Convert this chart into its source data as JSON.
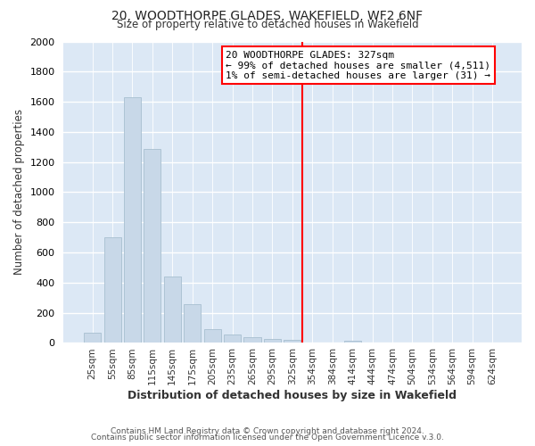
{
  "title": "20, WOODTHORPE GLADES, WAKEFIELD, WF2 6NF",
  "subtitle": "Size of property relative to detached houses in Wakefield",
  "xlabel": "Distribution of detached houses by size in Wakefield",
  "ylabel": "Number of detached properties",
  "bar_labels": [
    "25sqm",
    "55sqm",
    "85sqm",
    "115sqm",
    "145sqm",
    "175sqm",
    "205sqm",
    "235sqm",
    "265sqm",
    "295sqm",
    "325sqm",
    "354sqm",
    "384sqm",
    "414sqm",
    "444sqm",
    "474sqm",
    "504sqm",
    "534sqm",
    "564sqm",
    "594sqm",
    "624sqm"
  ],
  "bar_values": [
    65,
    700,
    1630,
    1285,
    440,
    255,
    90,
    55,
    40,
    28,
    20,
    0,
    0,
    15,
    0,
    0,
    0,
    0,
    0,
    0,
    0
  ],
  "bar_color": "#c8d8e8",
  "bar_edgecolor": "#a8bfd0",
  "vline_color": "red",
  "annotation_title": "20 WOODTHORPE GLADES: 327sqm",
  "annotation_line1": "← 99% of detached houses are smaller (4,511)",
  "annotation_line2": "1% of semi-detached houses are larger (31) →",
  "ylim": [
    0,
    2000
  ],
  "yticks": [
    0,
    200,
    400,
    600,
    800,
    1000,
    1200,
    1400,
    1600,
    1800,
    2000
  ],
  "footer1": "Contains HM Land Registry data © Crown copyright and database right 2024.",
  "footer2": "Contains public sector information licensed under the Open Government Licence v.3.0.",
  "bg_color": "#ffffff",
  "plot_bg_color": "#dce8f5"
}
